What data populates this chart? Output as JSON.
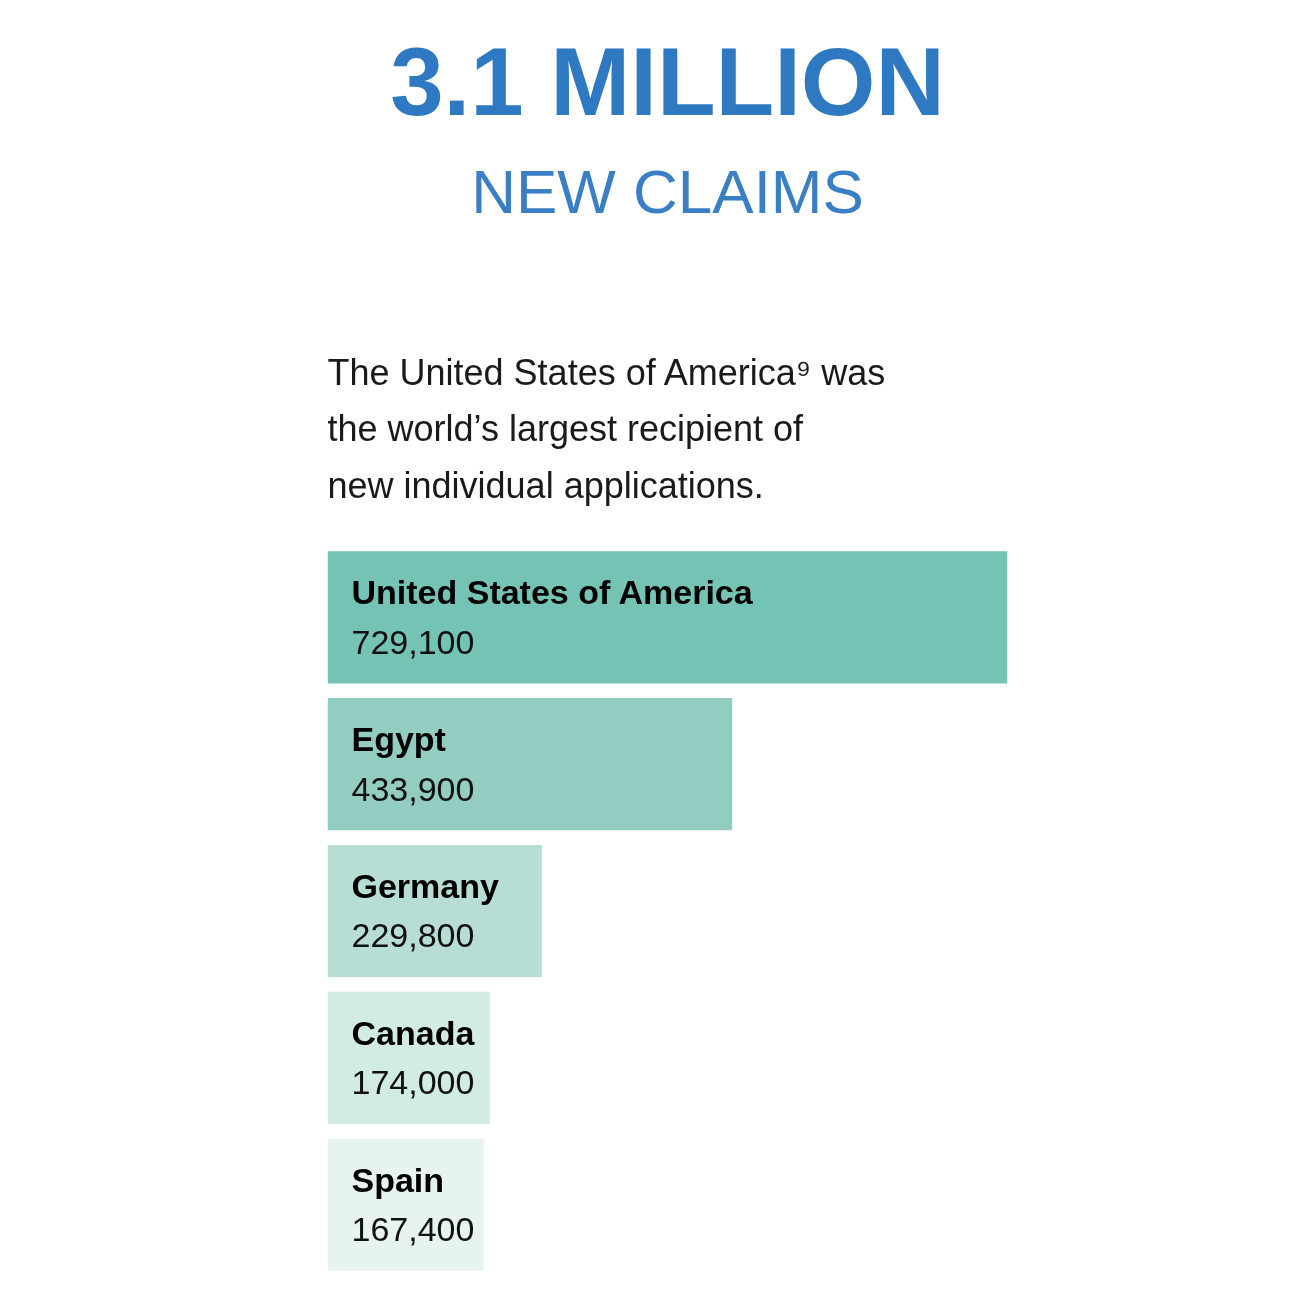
{
  "chart_data": {
    "type": "bar",
    "orientation": "horizontal",
    "title": "3.1 MILLION",
    "subtitle": "NEW CLAIMS",
    "annotations": [
      "The United States of America⁹ was the world’s largest recipient of new individual applications."
    ],
    "categories": [
      "United States of America",
      "Egypt",
      "Germany",
      "Canada",
      "Spain"
    ],
    "values": [
      729100,
      433900,
      229800,
      174000,
      167400
    ],
    "colors": [
      "#74c3b5",
      "#93ccc1",
      "#b7ddd4",
      "#d3ebe5",
      "#e6f3ef"
    ],
    "value_labels": [
      "729,100",
      "433,900",
      "229,800",
      "174,000",
      "167,400"
    ],
    "tick_labels": false
  }
}
